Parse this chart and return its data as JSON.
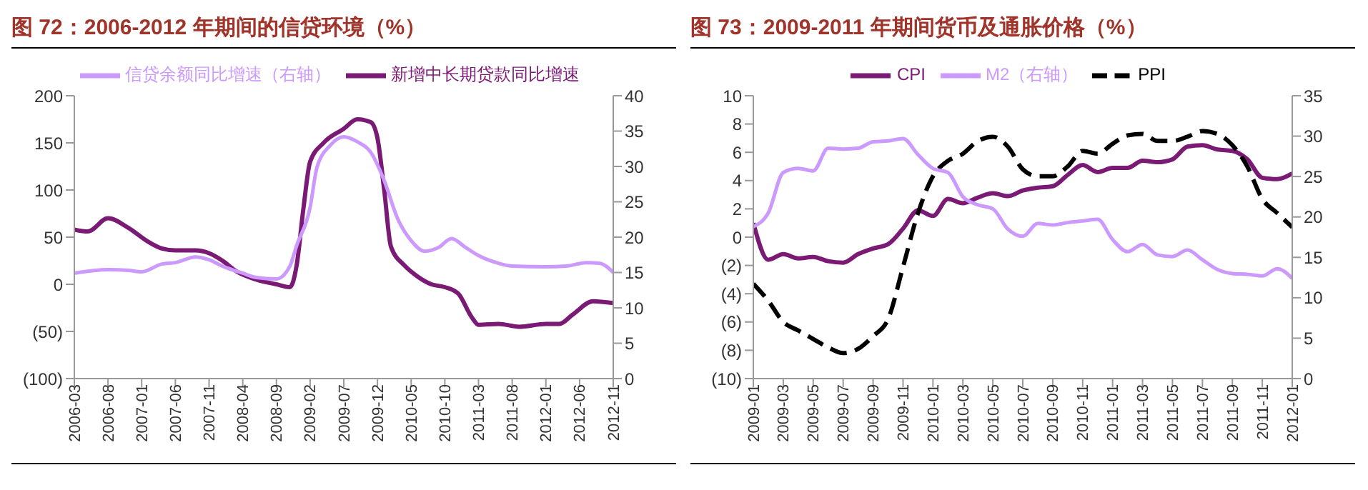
{
  "chart_data": [
    {
      "type": "line",
      "title": "图 72：2006-2012 年期间的信贷环境（%）",
      "legend": "top",
      "grid": false,
      "marker": "none",
      "xlim": [
        "2006-03",
        "2012-11"
      ],
      "xticks": [
        "2006-03",
        "2006-08",
        "2007-01",
        "2007-06",
        "2007-11",
        "2008-04",
        "2008-09",
        "2009-02",
        "2009-07",
        "2009-12",
        "2010-05",
        "2010-10",
        "2011-03",
        "2011-08",
        "2012-01",
        "2012-06",
        "2012-11"
      ],
      "ylim": [
        -100,
        200
      ],
      "yticks": [
        {
          "value": -100,
          "label": "(100)"
        },
        {
          "value": -50,
          "label": "(50)"
        },
        0,
        50,
        100,
        150,
        200
      ],
      "y2lim": [
        0,
        40
      ],
      "y2ticks": [
        0,
        5,
        10,
        15,
        20,
        25,
        30,
        35,
        40
      ],
      "series": [
        {
          "name": "新增中长期贷款同比增速",
          "color": "#7b1a74",
          "x": [
            "2006-03",
            "2006-05",
            "2006-08",
            "2006-11",
            "2007-02",
            "2007-04",
            "2007-06",
            "2007-09",
            "2007-11",
            "2008-01",
            "2008-03",
            "2008-06",
            "2008-09",
            "2008-11",
            "2008-12",
            "2009-01",
            "2009-02",
            "2009-04",
            "2009-07",
            "2009-09",
            "2009-11",
            "2009-12",
            "2010-01",
            "2010-02",
            "2010-04",
            "2010-06",
            "2010-08",
            "2010-10",
            "2010-12",
            "2011-02",
            "2011-03",
            "2011-06",
            "2011-09",
            "2012-01",
            "2012-03",
            "2012-05",
            "2012-08",
            "2012-11"
          ],
          "values": [
            58,
            56,
            70,
            60,
            45,
            38,
            36,
            36,
            33,
            25,
            14,
            5,
            0,
            -3,
            20,
            80,
            130,
            150,
            165,
            175,
            172,
            155,
            100,
            40,
            20,
            8,
            0,
            -3,
            -10,
            -35,
            -43,
            -42,
            -45,
            -42,
            -42,
            -32,
            -18,
            -20
          ]
        },
        {
          "name": "信贷余额同比增速（右轴）",
          "color": "#cc99ff",
          "axis": "y2",
          "x": [
            "2006-03",
            "2006-08",
            "2006-11",
            "2007-01",
            "2007-04",
            "2007-06",
            "2007-09",
            "2007-11",
            "2008-01",
            "2008-04",
            "2008-06",
            "2008-09",
            "2008-11",
            "2008-12",
            "2009-02",
            "2009-03",
            "2009-05",
            "2009-07",
            "2009-09",
            "2009-11",
            "2010-01",
            "2010-03",
            "2010-05",
            "2010-07",
            "2010-09",
            "2010-11",
            "2011-01",
            "2011-03",
            "2011-06",
            "2011-08",
            "2012-01",
            "2012-04",
            "2012-07",
            "2012-09",
            "2012-11"
          ],
          "values": [
            14.9,
            15.4,
            15.3,
            15.1,
            16.2,
            16.4,
            17.2,
            16.8,
            15.9,
            14.9,
            14.3,
            14.1,
            15.9,
            18.8,
            24.2,
            29.8,
            33,
            34.2,
            33.5,
            32,
            28,
            22.6,
            19.5,
            18,
            18.5,
            19.8,
            18.6,
            17.4,
            16.3,
            15.9,
            15.8,
            15.9,
            16.4,
            16.3,
            15
          ]
        }
      ]
    },
    {
      "type": "line",
      "title": "图 73：2009-2011 年期间货币及通胀价格（%）",
      "legend": "top",
      "grid": false,
      "marker": "none",
      "xlim": [
        "2009-01",
        "2012-01"
      ],
      "xticks": [
        "2009-01",
        "2009-03",
        "2009-05",
        "2009-07",
        "2009-09",
        "2009-11",
        "2010-01",
        "2010-03",
        "2010-05",
        "2010-07",
        "2010-09",
        "2010-11",
        "2011-01",
        "2011-03",
        "2011-05",
        "2011-07",
        "2011-09",
        "2011-11",
        "2012-01"
      ],
      "ylim": [
        -10,
        10
      ],
      "yticks": [
        {
          "value": -10,
          "label": "(10)"
        },
        {
          "value": -8,
          "label": "(8)"
        },
        {
          "value": -6,
          "label": "(6)"
        },
        {
          "value": -4,
          "label": "(4)"
        },
        {
          "value": -2,
          "label": "(2)"
        },
        0,
        2,
        4,
        6,
        8,
        10
      ],
      "y2lim": [
        0,
        35
      ],
      "y2ticks": [
        0,
        5,
        10,
        15,
        20,
        25,
        30,
        35
      ],
      "x": [
        "2009-01",
        "2009-02",
        "2009-03",
        "2009-04",
        "2009-05",
        "2009-06",
        "2009-07",
        "2009-08",
        "2009-09",
        "2009-10",
        "2009-11",
        "2009-12",
        "2010-01",
        "2010-02",
        "2010-03",
        "2010-04",
        "2010-05",
        "2010-06",
        "2010-07",
        "2010-08",
        "2010-09",
        "2010-10",
        "2010-11",
        "2010-12",
        "2011-01",
        "2011-02",
        "2011-03",
        "2011-04",
        "2011-05",
        "2011-06",
        "2011-07",
        "2011-08",
        "2011-09",
        "2011-10",
        "2011-11",
        "2011-12",
        "2012-01"
      ],
      "series": [
        {
          "name": "CPI",
          "color": "#7b1a74",
          "values": [
            1.0,
            -1.6,
            -1.2,
            -1.5,
            -1.4,
            -1.7,
            -1.8,
            -1.2,
            -0.8,
            -0.5,
            0.6,
            1.9,
            1.5,
            2.7,
            2.4,
            2.8,
            3.1,
            2.9,
            3.3,
            3.5,
            3.6,
            4.4,
            5.1,
            4.6,
            4.9,
            4.9,
            5.4,
            5.3,
            5.5,
            6.4,
            6.5,
            6.2,
            6.1,
            5.5,
            4.2,
            4.1,
            4.5
          ]
        },
        {
          "name": "PPI",
          "color": "#000000",
          "line_style": "dashed",
          "values": [
            -3.3,
            -4.5,
            -6.0,
            -6.6,
            -7.2,
            -7.8,
            -8.2,
            -7.9,
            -7.0,
            -5.8,
            -2.1,
            1.7,
            4.3,
            5.4,
            5.9,
            6.8,
            7.1,
            6.4,
            4.8,
            4.3,
            4.3,
            5.0,
            6.1,
            5.9,
            6.6,
            7.2,
            7.3,
            6.8,
            6.8,
            7.1,
            7.5,
            7.3,
            6.5,
            5.0,
            2.7,
            1.7,
            0.7
          ]
        },
        {
          "name": "M2（右轴）",
          "color": "#cc99ff",
          "axis": "y2",
          "values": [
            18.8,
            20.5,
            25.5,
            26,
            25.7,
            28.5,
            28.4,
            28.5,
            29.3,
            29.4,
            29.7,
            27.7,
            26,
            25.5,
            22.5,
            21.5,
            21.0,
            18.5,
            17.6,
            19.2,
            19.0,
            19.3,
            19.5,
            19.7,
            17.2,
            15.7,
            16.6,
            15.3,
            15.1,
            15.9,
            14.7,
            13.5,
            13.0,
            12.9,
            12.7,
            13.6,
            12.4
          ]
        }
      ]
    }
  ]
}
